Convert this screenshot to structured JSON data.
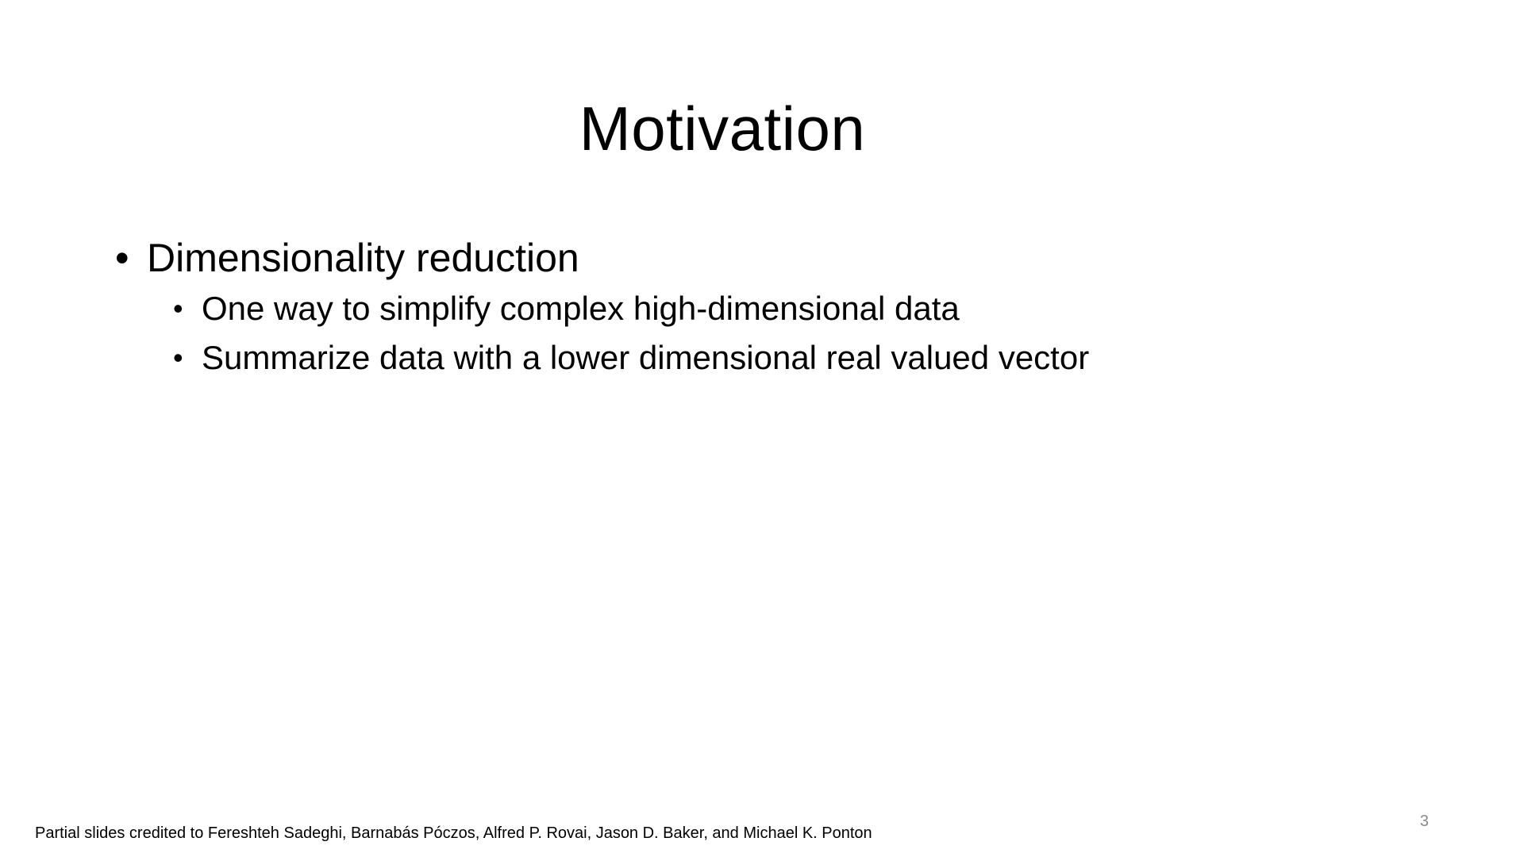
{
  "slide": {
    "title": "Motivation",
    "bullets": [
      {
        "text": "Dimensionality reduction",
        "subbullets": [
          "One way to simplify complex high-dimensional data",
          "Summarize data with a lower dimensional real valued vector"
        ]
      }
    ],
    "footer_credit": "Partial slides credited to Fereshteh Sadeghi, Barnabás Póczos, Alfred P. Rovai, Jason D. Baker, and Michael K. Ponton",
    "page_number": "3",
    "bullet_glyph": "•"
  }
}
